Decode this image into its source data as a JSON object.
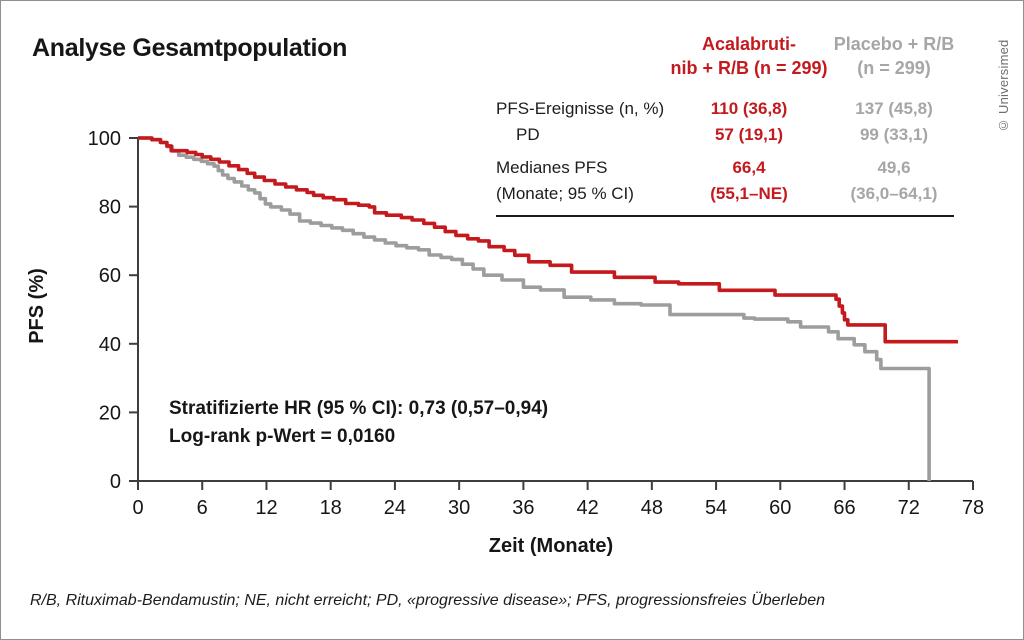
{
  "copyright": "© Universimed",
  "footnote": "R/B, Rituximab-Bendamustin; NE, nicht erreicht; PD, «progressive disease»; PFS, progressionsfreies Überleben",
  "table": {
    "header": {
      "col1_line1": "Acalabruti-",
      "col1_line2": "nib + R/B (n = 299)",
      "col2_line1": "Placebo + R/B",
      "col2_line2": "(n = 299)"
    },
    "rows": [
      {
        "label": "PFS-Ereignisse (n, %)",
        "acala": "110 (36,8)",
        "placebo": "137 (45,8)"
      },
      {
        "label": "PD",
        "acala": "57 (19,1)",
        "placebo": "99 (33,1)"
      }
    ],
    "median_row": {
      "label_line1": "Medianes PFS",
      "label_line2": "(Monate; 95 % CI)",
      "acala_line1": "66,4",
      "acala_line2": "(55,1–NE)",
      "placebo_line1": "49,6",
      "placebo_line2": "(36,0–64,1)"
    }
  },
  "chart_data": {
    "type": "line",
    "subtype": "kaplan-meier-step",
    "title": "Analyse Gesamtpopulation",
    "xlabel": "Zeit (Monate)",
    "ylabel": "PFS (%)",
    "xlim": [
      0,
      78
    ],
    "ylim": [
      0,
      100
    ],
    "x_ticks": [
      0,
      6,
      12,
      18,
      24,
      30,
      36,
      42,
      48,
      54,
      60,
      66,
      72,
      78
    ],
    "y_ticks": [
      0,
      20,
      40,
      60,
      80,
      100
    ],
    "grid": false,
    "legend_position": "none",
    "annotations": [
      "Stratifizierte HR (95 % CI): 0,73 (0,57–0,94)",
      "Log-rank p-Wert = 0,0160"
    ],
    "series": [
      {
        "name": "Placebo + R/B (n = 299)",
        "key": "placebo",
        "color": "#9d9d9d",
        "points": [
          [
            0,
            100
          ],
          [
            1.3,
            99.5
          ],
          [
            2.1,
            98.7
          ],
          [
            2.7,
            97.5
          ],
          [
            3.2,
            96.2
          ],
          [
            3.8,
            95
          ],
          [
            4.5,
            94.4
          ],
          [
            5.2,
            93.8
          ],
          [
            5.9,
            93.2
          ],
          [
            6.5,
            92.5
          ],
          [
            7.1,
            91.8
          ],
          [
            7.5,
            90.5
          ],
          [
            7.9,
            89.2
          ],
          [
            8.4,
            88.2
          ],
          [
            9,
            87.2
          ],
          [
            9.7,
            86
          ],
          [
            10.3,
            84.9
          ],
          [
            10.9,
            84
          ],
          [
            11.4,
            82.3
          ],
          [
            11.9,
            80.8
          ],
          [
            12.4,
            79.9
          ],
          [
            13.4,
            79
          ],
          [
            14.2,
            77.8
          ],
          [
            15.1,
            75.8
          ],
          [
            16.1,
            75.2
          ],
          [
            17.1,
            74.5
          ],
          [
            18.1,
            73.8
          ],
          [
            19.1,
            73.1
          ],
          [
            20.1,
            72.1
          ],
          [
            21.1,
            71.1
          ],
          [
            22.1,
            70.3
          ],
          [
            23.1,
            69.4
          ],
          [
            24.1,
            68.6
          ],
          [
            25.1,
            68
          ],
          [
            26.2,
            67.4
          ],
          [
            27.2,
            65.9
          ],
          [
            28.3,
            65.2
          ],
          [
            29.3,
            64.6
          ],
          [
            30.3,
            63.2
          ],
          [
            31.3,
            61.8
          ],
          [
            32.3,
            60
          ],
          [
            34,
            58.6
          ],
          [
            36,
            56.5
          ],
          [
            37.6,
            55.7
          ],
          [
            39.8,
            53.6
          ],
          [
            42.3,
            52.8
          ],
          [
            44.5,
            51.7
          ],
          [
            47,
            51.3
          ],
          [
            49.7,
            48.5
          ],
          [
            56.6,
            47.5
          ],
          [
            57.6,
            47.2
          ],
          [
            60.7,
            46.4
          ],
          [
            61.9,
            44.9
          ],
          [
            64.5,
            43.5
          ],
          [
            65.4,
            41.5
          ],
          [
            66.9,
            39.7
          ],
          [
            67.9,
            37.7
          ],
          [
            69,
            35.4
          ],
          [
            69.4,
            32.8
          ],
          [
            73.9,
            32.8
          ],
          [
            73.9,
            0
          ]
        ]
      },
      {
        "name": "Acalabrutinib + R/B (n = 299)",
        "key": "acalabrutinib",
        "color": "#c41a1e",
        "points": [
          [
            0,
            100
          ],
          [
            1.3,
            99.5
          ],
          [
            2.1,
            98.7
          ],
          [
            2.7,
            97.7
          ],
          [
            3.1,
            96.3
          ],
          [
            4.6,
            95.8
          ],
          [
            5.4,
            95.2
          ],
          [
            6,
            94.5
          ],
          [
            6.8,
            93.8
          ],
          [
            7.6,
            93
          ],
          [
            8.5,
            91.9
          ],
          [
            9.4,
            90.8
          ],
          [
            10.2,
            89.7
          ],
          [
            10.9,
            88.6
          ],
          [
            11.8,
            87.6
          ],
          [
            12.8,
            86.6
          ],
          [
            13.8,
            85.7
          ],
          [
            14.8,
            84.9
          ],
          [
            15.8,
            84.1
          ],
          [
            16.4,
            83.3
          ],
          [
            17.3,
            82.6
          ],
          [
            18.3,
            82
          ],
          [
            19.4,
            80.9
          ],
          [
            20.6,
            80.4
          ],
          [
            21.6,
            79.9
          ],
          [
            22.1,
            78.2
          ],
          [
            23.2,
            77.5
          ],
          [
            24.6,
            76.8
          ],
          [
            25.6,
            76.1
          ],
          [
            26.7,
            75.1
          ],
          [
            27.7,
            74
          ],
          [
            28.7,
            72.7
          ],
          [
            29.7,
            71.6
          ],
          [
            30.8,
            70.6
          ],
          [
            31.8,
            70
          ],
          [
            32.8,
            68.3
          ],
          [
            34.2,
            67.2
          ],
          [
            35.2,
            65.8
          ],
          [
            36.5,
            63.9
          ],
          [
            38.5,
            62.9
          ],
          [
            40.5,
            60.9
          ],
          [
            44.5,
            59.4
          ],
          [
            48.3,
            58
          ],
          [
            50.5,
            57.5
          ],
          [
            54.3,
            55.6
          ],
          [
            59.5,
            54.2
          ],
          [
            65.2,
            53
          ],
          [
            65.5,
            51
          ],
          [
            65.8,
            49
          ],
          [
            66,
            47
          ],
          [
            66.3,
            45.5
          ],
          [
            69.8,
            40.6
          ],
          [
            76.6,
            40.6
          ]
        ]
      }
    ]
  }
}
